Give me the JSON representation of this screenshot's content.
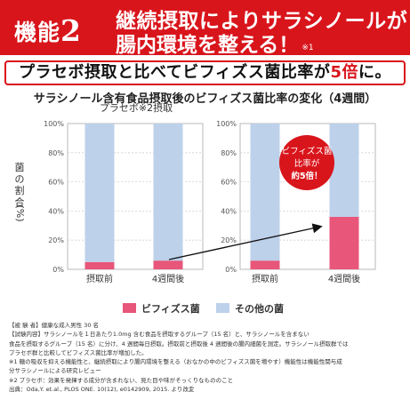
{
  "banner": {
    "function_label": "機能",
    "function_number": "2",
    "line1": "継続摂取によりサラシノールが",
    "line2": "腸内環境を整える！",
    "note_mark": "※1"
  },
  "headline": {
    "before": "プラセボ摂取と比べてビフィズス菌比率が",
    "highlight": "5倍",
    "after": "に。"
  },
  "subtitle": "サラシノール含有食品摂取後のビフィズス菌比率の変化（4週間）",
  "callout": {
    "line1": "ビフィズス菌",
    "line2": "比率が",
    "line3": "約5倍！"
  },
  "colors": {
    "brand_red": "#d9151c",
    "bifidus": "#e8567a",
    "other": "#bdd1ea",
    "callout": "#d9151c"
  },
  "chart_data": [
    {
      "type": "bar",
      "stacked": true,
      "title": "プラセボ※2摂取",
      "ylabel": "菌の割合（%）",
      "ylim": [
        0,
        100
      ],
      "yticks": [
        "0%",
        "20%",
        "40%",
        "60%",
        "80%",
        "100%"
      ],
      "categories": [
        "摂取前",
        "4週間後"
      ],
      "series": [
        {
          "name": "ビフィズス菌",
          "values": [
            5,
            6
          ]
        },
        {
          "name": "その他の菌",
          "values": [
            95,
            94
          ]
        }
      ]
    },
    {
      "type": "bar",
      "stacked": true,
      "title": "",
      "ylim": [
        0,
        100
      ],
      "yticks": [
        "0%",
        "20%",
        "40%",
        "60%",
        "80%",
        "100%"
      ],
      "categories": [
        "摂取前",
        "4週間後"
      ],
      "series": [
        {
          "name": "ビフィズス菌",
          "values": [
            6,
            36
          ]
        },
        {
          "name": "その他の菌",
          "values": [
            94,
            64
          ]
        }
      ]
    }
  ],
  "legend": {
    "bifidus": "ビフィズス菌",
    "other": "その他の菌"
  },
  "footnotes": [
    "【被 験 者】健康な成人男性 30 名",
    "【試験内容】サラシノールを１日あたり1.0mg 含む食品を摂取するグループ（15 名）と、サラシノールを含まない",
    "食品を摂取するグループ（15 名）に分け、4 週間毎日摂取。摂取前と摂取後 4 週間後の腸内細菌を測定。サラシノール摂取群では",
    "プラセボ群と比較してビフィズス菌比率が増加した。",
    "※1 糖の吸収を抑える機能性と、継続摂取により腸内環境を整える（おなかの中のビフィズス菌を増やす）機能性は機能性関与成",
    "分サラシノールによる研究レビュー",
    "※2 プラセボ：効果を発揮する成分が含まれない、見た目や味がそっくりなもののこと",
    "出典：Oda,Y. et.al., PLOS ONE. 10(12), e0142909, 2015. より改変"
  ]
}
